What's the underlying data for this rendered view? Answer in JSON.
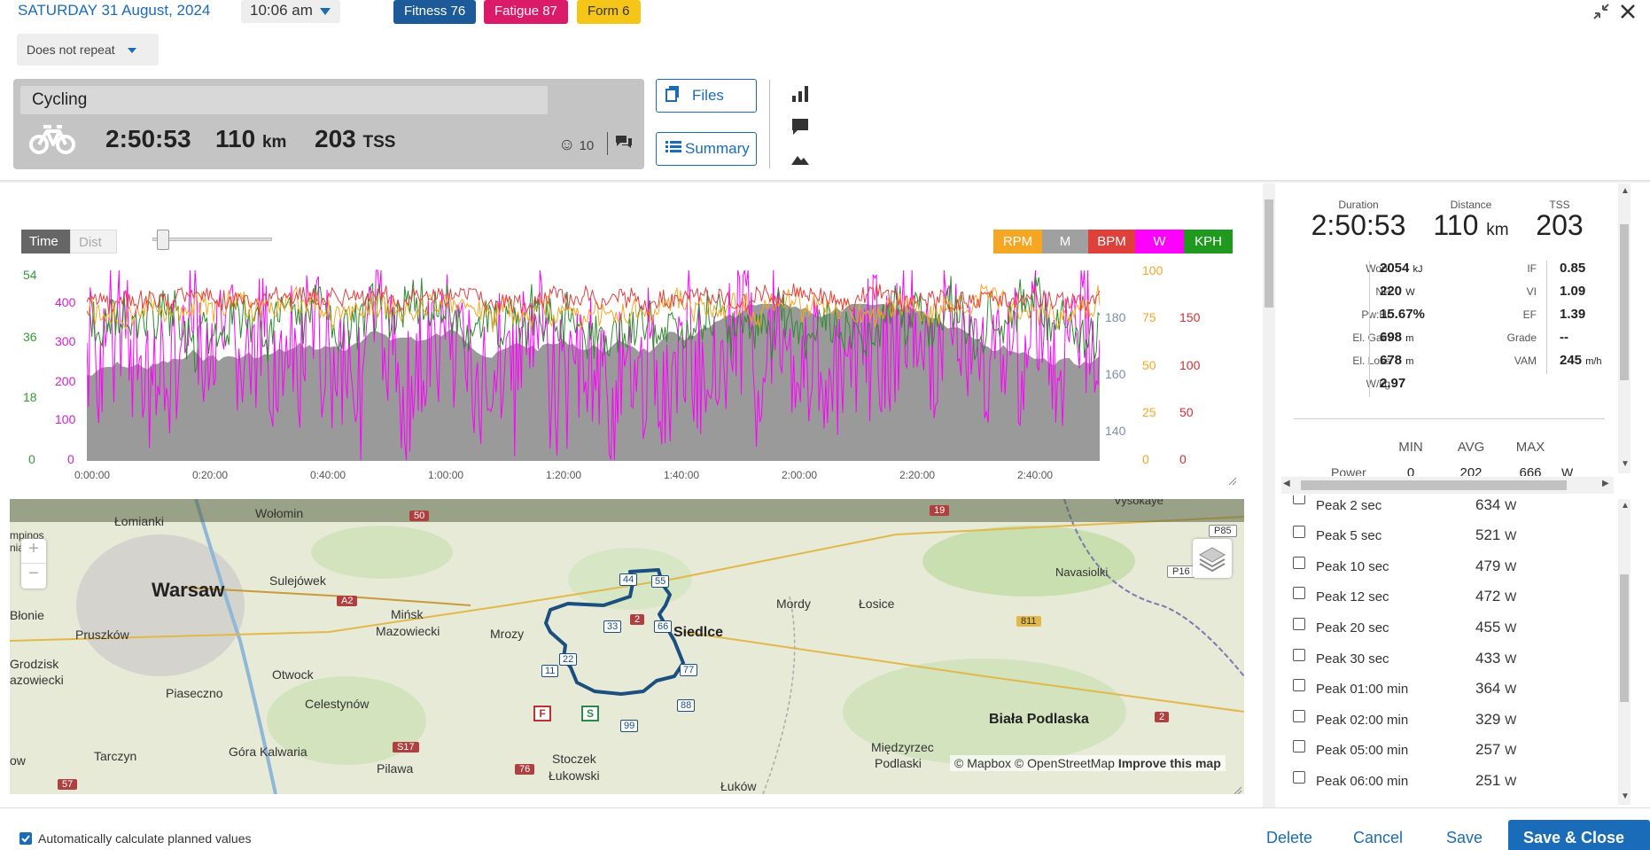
{
  "header": {
    "date": "SATURDAY 31 August, 2024",
    "time": "10:06 am",
    "badges": {
      "fitness": "Fitness 76",
      "fatigue": "Fatigue 87",
      "form": "Form 6"
    },
    "repeat": "Does not repeat"
  },
  "workout": {
    "sport": "Cycling",
    "duration": "2:50:53",
    "distance": "110",
    "distance_unit": "km",
    "tss": "203",
    "tss_unit": "TSS",
    "mood_count": "10"
  },
  "buttons": {
    "files": "Files",
    "summary": "Summary"
  },
  "chart": {
    "toggle_time": "Time",
    "toggle_dist": "Dist",
    "legend": [
      "RPM",
      "M",
      "BPM",
      "W",
      "KPH"
    ],
    "axis_kph": [
      "54",
      "36",
      "18",
      "0"
    ],
    "axis_w": [
      "400",
      "300",
      "200",
      "100",
      "0"
    ],
    "axis_elev": [
      "180",
      "160",
      "140"
    ],
    "axis_rpm": [
      "100",
      "75",
      "50",
      "25",
      "0"
    ],
    "axis_bpm": [
      "150",
      "100",
      "50",
      "0"
    ],
    "x_ticks": [
      "0:00:00",
      "0:20:00",
      "0:40:00",
      "1:00:00",
      "1:20:00",
      "1:40:00",
      "2:00:00",
      "2:20:00",
      "2:40:00"
    ]
  },
  "chart_data": {
    "type": "area",
    "x_range": [
      "0:00:00",
      "2:50:53"
    ],
    "series": [
      {
        "name": "W",
        "color": "#ff00ff",
        "ylim": [
          0,
          450
        ]
      },
      {
        "name": "KPH",
        "color": "#339933",
        "ylim": [
          0,
          54
        ]
      },
      {
        "name": "RPM",
        "color": "#f5a623",
        "ylim": [
          0,
          100
        ]
      },
      {
        "name": "BPM",
        "color": "#e04040",
        "ylim": [
          0,
          175
        ]
      },
      {
        "name": "M",
        "color": "#999999",
        "ylim": [
          130,
          190
        ]
      }
    ]
  },
  "map": {
    "places": [
      "Łomianki",
      "Wołomin",
      "Warsaw",
      "Sulejówek",
      "Błonie",
      "Pruszków",
      "Mińsk",
      "Mazowiecki",
      "Mrozy",
      "Siedlce",
      "Mordy",
      "Łosice",
      "Navasiolki",
      "Vysokaye",
      "Grodzisk",
      "azowiecki",
      "Piaseczno",
      "Otwock",
      "Celestynów",
      "Biała Podlaska",
      "Tarczyn",
      "Góra Kalwaria",
      "Pilawa",
      "Stoczek",
      "Łukowski",
      "Międzyrzec",
      "Podlaski",
      "Łuków",
      "ow",
      "mpinos",
      "nia rk"
    ],
    "roads": [
      "50",
      "19",
      "A2",
      "P85",
      "P16",
      "811",
      "2",
      "S17",
      "57",
      "76",
      "2"
    ],
    "waypoints": [
      "44",
      "55",
      "33",
      "66",
      "22",
      "11",
      "77",
      "88",
      "99"
    ],
    "markers": {
      "start": "S",
      "finish": "F"
    },
    "attribution": "© Mapbox © OpenStreetMap",
    "improve": "Improve this map"
  },
  "summary": {
    "duration_label": "Duration",
    "duration": "2:50:53",
    "distance_label": "Distance",
    "distance": "110",
    "distance_unit": "km",
    "tss_label": "TSS",
    "tss": "203",
    "left_metrics": [
      {
        "label": "Work",
        "value": "2054",
        "unit": "kJ"
      },
      {
        "label": "NP",
        "value": "220",
        "unit": "W"
      },
      {
        "label": "Pw:Hr",
        "value": "15.67%",
        "unit": ""
      },
      {
        "label": "El. Gain",
        "value": "698",
        "unit": "m"
      },
      {
        "label": "El. Loss",
        "value": "678",
        "unit": "m"
      },
      {
        "label": "W/kg",
        "value": "2.97",
        "unit": ""
      }
    ],
    "right_metrics": [
      {
        "label": "IF",
        "value": "0.85",
        "unit": ""
      },
      {
        "label": "VI",
        "value": "1.09",
        "unit": ""
      },
      {
        "label": "EF",
        "value": "1.39",
        "unit": ""
      },
      {
        "label": "Grade",
        "value": "--",
        "unit": ""
      },
      {
        "label": "VAM",
        "value": "245",
        "unit": "m/h"
      }
    ],
    "table_head": {
      "min": "MIN",
      "avg": "AVG",
      "max": "MAX"
    },
    "power_row": {
      "label": "Power",
      "min": "0",
      "avg": "202",
      "max": "666",
      "unit": "W"
    }
  },
  "peaks": [
    {
      "label": "Peak 2 sec",
      "value": "634",
      "unit": "W"
    },
    {
      "label": "Peak 5 sec",
      "value": "521",
      "unit": "W"
    },
    {
      "label": "Peak 10 sec",
      "value": "479",
      "unit": "W"
    },
    {
      "label": "Peak 12 sec",
      "value": "472",
      "unit": "W"
    },
    {
      "label": "Peak 20 sec",
      "value": "455",
      "unit": "W"
    },
    {
      "label": "Peak 30 sec",
      "value": "433",
      "unit": "W"
    },
    {
      "label": "Peak 01:00 min",
      "value": "364",
      "unit": "W"
    },
    {
      "label": "Peak 02:00 min",
      "value": "329",
      "unit": "W"
    },
    {
      "label": "Peak 05:00 min",
      "value": "257",
      "unit": "W"
    },
    {
      "label": "Peak 06:00 min",
      "value": "251",
      "unit": "W"
    }
  ],
  "footer": {
    "auto_calc": "Automatically calculate planned values",
    "delete": "Delete",
    "cancel": "Cancel",
    "save": "Save",
    "save_close": "Save & Close"
  }
}
